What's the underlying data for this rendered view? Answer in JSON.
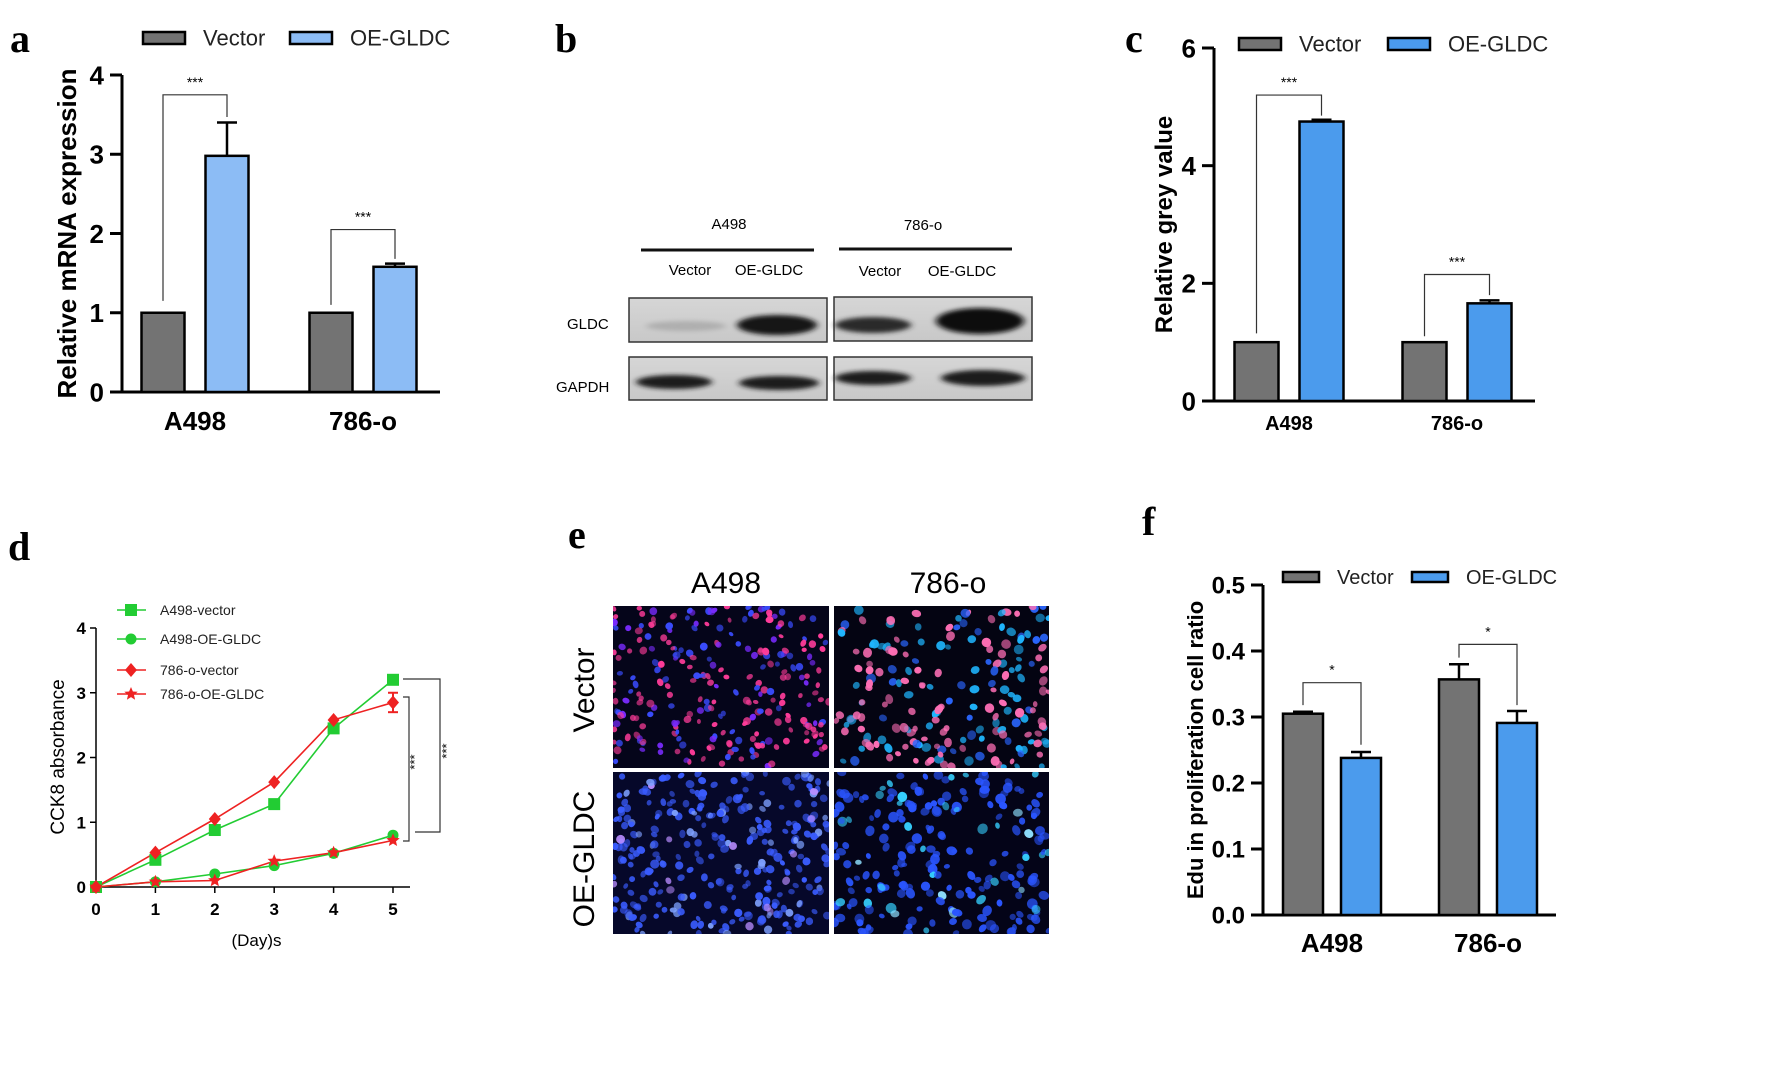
{
  "colors": {
    "vector": "#737373",
    "oe_a": "#8cbcf5",
    "oe_c": "#4b9bed",
    "green": "#22cc33",
    "red": "#ee2222"
  },
  "panels": {
    "a": "a",
    "b": "b",
    "c": "c",
    "d": "d",
    "e": "e",
    "f": "f"
  },
  "chart_data": [
    {
      "id": "a",
      "type": "bar",
      "title": "",
      "xlabel": "",
      "ylabel": "Relative mRNA expression",
      "ylim": [
        0,
        4
      ],
      "yticks": [
        "0",
        "1",
        "2",
        "3",
        "4"
      ],
      "categories": [
        "A498",
        "786-o"
      ],
      "legend": [
        "Vector",
        "OE-GLDC"
      ],
      "series": [
        {
          "name": "Vector",
          "values": [
            1.0,
            1.0
          ],
          "err": [
            0,
            0
          ]
        },
        {
          "name": "OE-GLDC",
          "values": [
            2.98,
            1.58
          ],
          "err": [
            0.42,
            0.04
          ]
        }
      ],
      "significance": [
        "***",
        "***"
      ]
    },
    {
      "id": "c",
      "type": "bar",
      "title": "",
      "xlabel": "",
      "ylabel": "Relative grey value",
      "ylim": [
        0,
        6
      ],
      "yticks": [
        "0",
        "2",
        "4",
        "6"
      ],
      "categories": [
        "A498",
        "786-o"
      ],
      "legend": [
        "Vector",
        "OE-GLDC"
      ],
      "series": [
        {
          "name": "Vector",
          "values": [
            1.0,
            1.0
          ],
          "err": [
            0,
            0
          ]
        },
        {
          "name": "OE-GLDC",
          "values": [
            4.75,
            1.66
          ],
          "err": [
            0.03,
            0.05
          ]
        }
      ],
      "significance": [
        "***",
        "***"
      ]
    },
    {
      "id": "d",
      "type": "line",
      "title": "",
      "xlabel": "(Day)s",
      "ylabel": "CCK8 absorbance",
      "xlim": [
        0,
        5
      ],
      "ylim": [
        0,
        4
      ],
      "x": [
        0,
        1,
        2,
        3,
        4,
        5
      ],
      "xticks": [
        "0",
        "1",
        "2",
        "3",
        "4",
        "5"
      ],
      "yticks": [
        "0",
        "1",
        "2",
        "3",
        "4"
      ],
      "series": [
        {
          "name": "A498-vector",
          "marker": "square",
          "color": "green",
          "values": [
            0,
            0.42,
            0.88,
            1.28,
            2.45,
            3.2
          ]
        },
        {
          "name": "A498-OE-GLDC",
          "marker": "circle",
          "color": "green",
          "values": [
            0,
            0.08,
            0.2,
            0.33,
            0.52,
            0.8
          ]
        },
        {
          "name": "786-o-vector",
          "marker": "diamond",
          "color": "red",
          "values": [
            0,
            0.53,
            1.05,
            1.62,
            2.58,
            2.85
          ]
        },
        {
          "name": "786-o-OE-GLDC",
          "marker": "star",
          "color": "red",
          "values": [
            0,
            0.08,
            0.1,
            0.4,
            0.53,
            0.72
          ]
        }
      ],
      "significance": [
        "***",
        "***"
      ]
    },
    {
      "id": "f",
      "type": "bar",
      "title": "",
      "xlabel": "",
      "ylabel": "Edu in proliferation cell ratio",
      "ylim": [
        0,
        0.5
      ],
      "yticks": [
        "0.0",
        "0.1",
        "0.2",
        "0.3",
        "0.4",
        "0.5"
      ],
      "categories": [
        "A498",
        "786-o"
      ],
      "legend": [
        "Vector",
        "OE-GLDC"
      ],
      "series": [
        {
          "name": "Vector",
          "values": [
            0.305,
            0.357
          ],
          "err": [
            0.003,
            0.023
          ]
        },
        {
          "name": "OE-GLDC",
          "values": [
            0.238,
            0.291
          ],
          "err": [
            0.009,
            0.018
          ]
        }
      ],
      "significance": [
        "*",
        "*"
      ]
    }
  ],
  "blot": {
    "groups": [
      "A498",
      "786-o"
    ],
    "lanes": [
      "Vector",
      "OE-GLDC",
      "Vector",
      "OE-GLDC"
    ],
    "proteins": [
      "GLDC",
      "GAPDH"
    ]
  },
  "micrograph": {
    "columns": [
      "A498",
      "786-o"
    ],
    "rows": [
      "Vector",
      "OE-GLDC"
    ]
  }
}
